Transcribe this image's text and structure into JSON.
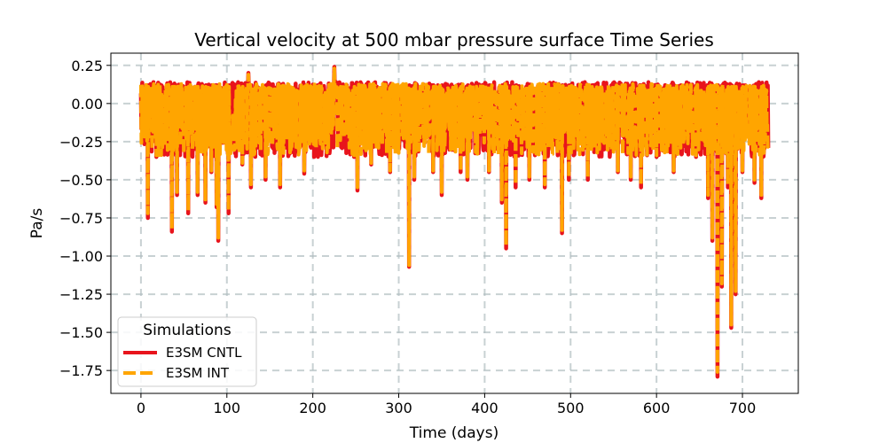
{
  "chart_data": {
    "type": "line",
    "title": "Vertical velocity at 500 mbar pressure surface Time Series",
    "xlabel": "Time (days)",
    "ylabel": "Pa/s",
    "xlim": [
      -35,
      765
    ],
    "ylim": [
      -1.9,
      0.33
    ],
    "xticks": [
      0,
      100,
      200,
      300,
      400,
      500,
      600,
      700
    ],
    "xtick_labels": [
      "0",
      "100",
      "200",
      "300",
      "400",
      "500",
      "600",
      "700"
    ],
    "yticks": [
      0.25,
      0.0,
      -0.25,
      -0.5,
      -0.75,
      -1.0,
      -1.25,
      -1.5,
      -1.75
    ],
    "ytick_labels": [
      "0.25",
      "0.00",
      "−0.25",
      "−0.50",
      "−0.75",
      "−1.00",
      "−1.25",
      "−1.50",
      "−1.75"
    ],
    "grid": true,
    "legend": {
      "title": "Simulations",
      "position": "lower-left"
    },
    "x_range": [
      0,
      730
    ],
    "series": [
      {
        "name": "E3SM CNTL",
        "color": "#e8141c",
        "style": "solid",
        "baseline_range": [
          -0.35,
          0.14
        ],
        "events": [
          [
            8,
            -0.75
          ],
          [
            18,
            -0.35
          ],
          [
            36,
            -0.84
          ],
          [
            42,
            -0.6
          ],
          [
            55,
            -0.72
          ],
          [
            66,
            -0.6
          ],
          [
            75,
            -0.65
          ],
          [
            82,
            -0.45
          ],
          [
            88,
            -0.68
          ],
          [
            90,
            -0.9
          ],
          [
            102,
            -0.72
          ],
          [
            118,
            -0.4
          ],
          [
            125,
            0.2
          ],
          [
            128,
            -0.55
          ],
          [
            145,
            -0.5
          ],
          [
            162,
            -0.55
          ],
          [
            190,
            -0.46
          ],
          [
            205,
            -0.25
          ],
          [
            225,
            0.24
          ],
          [
            232,
            -0.25
          ],
          [
            248,
            -0.35
          ],
          [
            252,
            -0.57
          ],
          [
            268,
            -0.4
          ],
          [
            290,
            -0.45
          ],
          [
            312,
            -1.07
          ],
          [
            318,
            -0.5
          ],
          [
            340,
            -0.45
          ],
          [
            350,
            -0.6
          ],
          [
            372,
            -0.45
          ],
          [
            380,
            -0.5
          ],
          [
            405,
            -0.45
          ],
          [
            420,
            -0.65
          ],
          [
            425,
            -0.95
          ],
          [
            436,
            -0.55
          ],
          [
            452,
            -0.5
          ],
          [
            470,
            -0.55
          ],
          [
            490,
            -0.85
          ],
          [
            498,
            -0.5
          ],
          [
            520,
            -0.5
          ],
          [
            555,
            -0.45
          ],
          [
            570,
            -0.5
          ],
          [
            582,
            -0.55
          ],
          [
            600,
            -0.35
          ],
          [
            620,
            -0.45
          ],
          [
            628,
            -0.3
          ],
          [
            646,
            -0.35
          ],
          [
            660,
            -0.62
          ],
          [
            665,
            -0.9
          ],
          [
            671,
            -1.79
          ],
          [
            676,
            -1.2
          ],
          [
            683,
            -0.55
          ],
          [
            687,
            -1.47
          ],
          [
            692,
            -1.25
          ],
          [
            700,
            -0.45
          ],
          [
            714,
            -0.52
          ],
          [
            722,
            -0.62
          ]
        ]
      },
      {
        "name": "E3SM INT",
        "color": "#ffa500",
        "style": "dashed",
        "baseline_range": [
          -0.34,
          0.13
        ],
        "events": [
          [
            8,
            -0.72
          ],
          [
            18,
            -0.34
          ],
          [
            36,
            -0.82
          ],
          [
            42,
            -0.58
          ],
          [
            55,
            -0.7
          ],
          [
            66,
            -0.58
          ],
          [
            75,
            -0.63
          ],
          [
            82,
            -0.44
          ],
          [
            88,
            -0.66
          ],
          [
            90,
            -0.88
          ],
          [
            102,
            -0.7
          ],
          [
            118,
            -0.39
          ],
          [
            125,
            0.19
          ],
          [
            128,
            -0.53
          ],
          [
            145,
            -0.48
          ],
          [
            162,
            -0.53
          ],
          [
            190,
            -0.44
          ],
          [
            205,
            -0.24
          ],
          [
            225,
            0.23
          ],
          [
            232,
            -0.24
          ],
          [
            248,
            -0.34
          ],
          [
            252,
            -0.55
          ],
          [
            268,
            -0.39
          ],
          [
            290,
            -0.44
          ],
          [
            312,
            -1.06
          ],
          [
            318,
            -0.48
          ],
          [
            340,
            -0.44
          ],
          [
            350,
            -0.58
          ],
          [
            372,
            -0.44
          ],
          [
            380,
            -0.48
          ],
          [
            405,
            -0.44
          ],
          [
            420,
            -0.63
          ],
          [
            425,
            -0.93
          ],
          [
            436,
            -0.53
          ],
          [
            452,
            -0.48
          ],
          [
            470,
            -0.53
          ],
          [
            490,
            -0.83
          ],
          [
            498,
            -0.48
          ],
          [
            520,
            -0.48
          ],
          [
            555,
            -0.44
          ],
          [
            570,
            -0.48
          ],
          [
            582,
            -0.53
          ],
          [
            600,
            -0.34
          ],
          [
            620,
            -0.44
          ],
          [
            628,
            -0.29
          ],
          [
            646,
            -0.34
          ],
          [
            660,
            -0.6
          ],
          [
            665,
            -0.88
          ],
          [
            671,
            -1.76
          ],
          [
            676,
            -1.18
          ],
          [
            683,
            -0.53
          ],
          [
            687,
            -1.45
          ],
          [
            692,
            -1.23
          ],
          [
            700,
            -0.44
          ],
          [
            714,
            -0.5
          ],
          [
            722,
            -0.6
          ]
        ]
      }
    ]
  }
}
